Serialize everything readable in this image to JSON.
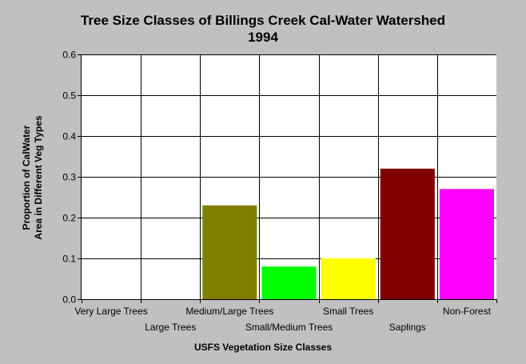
{
  "chart_data": {
    "type": "bar",
    "title_lines": [
      "Tree Size Classes of Billings Creek Cal-Water Watershed",
      "1994"
    ],
    "xlabel": "USFS Vegetation Size Classes",
    "ylabel_lines": [
      "Proportion of CalWater",
      "Area in Different Veg Types"
    ],
    "categories": [
      "Very Large Trees",
      "Large Trees",
      "Medium/Large Trees",
      "Small/Medium Trees",
      "Small Trees",
      "Saplings",
      "Non-Forest"
    ],
    "values": [
      0,
      0,
      0.23,
      0.08,
      0.1,
      0.32,
      0.27
    ],
    "colors": [
      "#808000",
      "#808000",
      "#808000",
      "#00ff00",
      "#ffff00",
      "#800000",
      "#ff00ff"
    ],
    "ylim": [
      0,
      0.6
    ],
    "yticks": [
      0.0,
      0.1,
      0.2,
      0.3,
      0.4,
      0.5,
      0.6
    ],
    "ytick_labels": [
      "0.0",
      "0.1",
      "0.2",
      "0.3",
      "0.4",
      "0.5",
      "0.6"
    ],
    "grid": true,
    "background": "#c0c0c0",
    "plot_background": "#ffffff"
  }
}
